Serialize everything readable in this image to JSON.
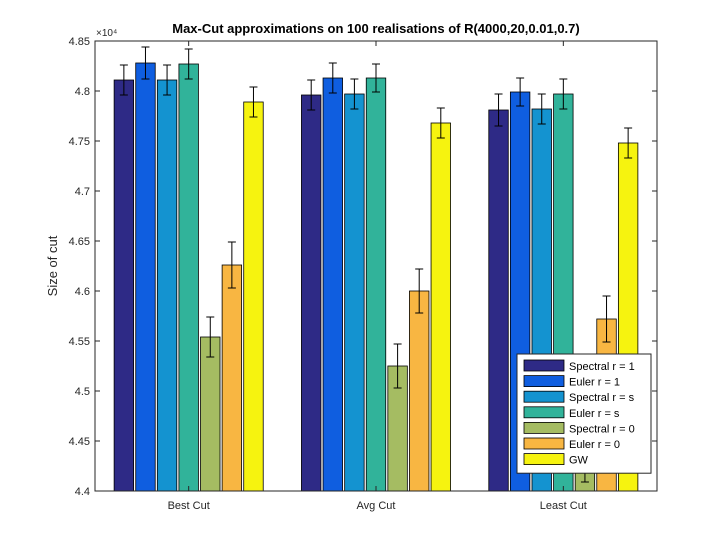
{
  "chart_data": {
    "type": "bar",
    "title": "Max-Cut approximations on 100 realisations of R(4000,20,0.01,0.7)",
    "xlabel": "",
    "ylabel": "Size of cut",
    "y_exponent_label": "×10⁴",
    "ylim": [
      4.4,
      4.85
    ],
    "yticks": [
      "4.4",
      "4.45",
      "4.5",
      "4.55",
      "4.6",
      "4.65",
      "4.7",
      "4.75",
      "4.8",
      "4.85"
    ],
    "ytick_values": [
      4.4,
      4.45,
      4.5,
      4.55,
      4.6,
      4.65,
      4.7,
      4.75,
      4.8,
      4.85
    ],
    "categories": [
      "Best Cut",
      "Avg Cut",
      "Least Cut"
    ],
    "series": [
      {
        "name": "Spectral r = 1",
        "color": "#2e2a86",
        "values": [
          4.811,
          4.796,
          4.781
        ],
        "err": [
          0.015,
          0.015,
          0.016
        ]
      },
      {
        "name": "Euler r = 1",
        "color": "#0f5ee0",
        "values": [
          4.828,
          4.813,
          4.799
        ],
        "err": [
          0.016,
          0.015,
          0.014
        ]
      },
      {
        "name": "Spectral r = s",
        "color": "#1493d0",
        "values": [
          4.811,
          4.797,
          4.782
        ],
        "err": [
          0.015,
          0.015,
          0.015
        ]
      },
      {
        "name": "Euler r = s",
        "color": "#31b39a",
        "values": [
          4.827,
          4.813,
          4.797
        ],
        "err": [
          0.015,
          0.014,
          0.015
        ]
      },
      {
        "name": "Spectral r = 0",
        "color": "#a5bc62",
        "values": [
          4.554,
          4.525,
          4.429
        ],
        "err": [
          0.02,
          0.022,
          0.02
        ]
      },
      {
        "name": "Euler r = 0",
        "color": "#f8b642",
        "values": [
          4.626,
          4.6,
          4.572
        ],
        "err": [
          0.023,
          0.022,
          0.023
        ]
      },
      {
        "name": "GW",
        "color": "#f6f30f",
        "values": [
          4.789,
          4.768,
          4.748
        ],
        "err": [
          0.015,
          0.015,
          0.015
        ]
      }
    ],
    "grid": false,
    "legend_position": "bottom-right"
  }
}
